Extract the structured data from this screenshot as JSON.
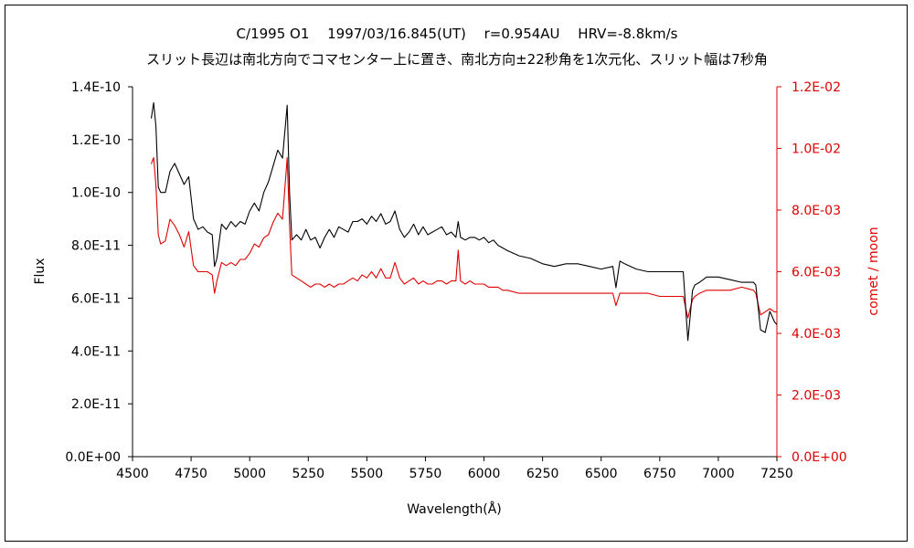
{
  "chart_data": {
    "type": "line",
    "title": "C/1995 O1　 1997/03/16.845(UT)　 r=0.954AU　 HRV=-8.8km/s",
    "subtitle": "スリット長辺は南北方向でコマセンター上に置き、南北方向±22秒角を1次元化、スリット幅は7秒角",
    "xlabel": "Wavelength(Å)",
    "ylabel": "Flux",
    "y2label": "comet / moon",
    "xlim": [
      4500,
      7250
    ],
    "ylim": [
      0,
      1.4e-10
    ],
    "y2lim": [
      0,
      0.012
    ],
    "xticks": [
      4500,
      4750,
      5000,
      5250,
      5500,
      5750,
      6000,
      6250,
      6500,
      6750,
      7000,
      7250
    ],
    "xtick_labels": [
      "4500",
      "4750",
      "5000",
      "5250",
      "5500",
      "5750",
      "6000",
      "6250",
      "6500",
      "6750",
      "7000",
      "7250"
    ],
    "yticks": [
      0,
      2e-11,
      4e-11,
      6e-11,
      8e-11,
      1e-10,
      1.2e-10,
      1.4e-10
    ],
    "ytick_labels": [
      "0.0E+00",
      "2.0E-11",
      "4.0E-11",
      "6.0E-11",
      "8.0E-11",
      "1.0E-10",
      "1.2E-10",
      "1.4E-10"
    ],
    "y2ticks": [
      0,
      0.002,
      0.004,
      0.006,
      0.008,
      0.01,
      0.012
    ],
    "y2tick_labels": [
      "0.0E+00",
      "2.0E-03",
      "4.0E-03",
      "6.0E-03",
      "8.0E-03",
      "1.0E-02",
      "1.2E-02"
    ],
    "grid": false,
    "colors": {
      "flux": "#000000",
      "ratio": "#e00000",
      "axis_right": "#e00000"
    },
    "series": [
      {
        "axis": "left",
        "x": [
          4580,
          4590,
          4600,
          4610,
          4620,
          4640,
          4660,
          4680,
          4700,
          4720,
          4740,
          4760,
          4780,
          4800,
          4820,
          4840,
          4850,
          4860,
          4880,
          4900,
          4920,
          4940,
          4960,
          4980,
          5000,
          5020,
          5040,
          5060,
          5080,
          5100,
          5120,
          5140,
          5160,
          5170,
          5180,
          5200,
          5220,
          5240,
          5260,
          5280,
          5300,
          5320,
          5340,
          5360,
          5380,
          5400,
          5420,
          5440,
          5460,
          5480,
          5500,
          5520,
          5540,
          5560,
          5580,
          5600,
          5620,
          5640,
          5660,
          5680,
          5700,
          5720,
          5740,
          5760,
          5780,
          5800,
          5820,
          5840,
          5860,
          5880,
          5890,
          5900,
          5920,
          5940,
          5960,
          5980,
          6000,
          6020,
          6040,
          6060,
          6080,
          6100,
          6150,
          6200,
          6250,
          6300,
          6350,
          6400,
          6450,
          6500,
          6550,
          6563,
          6580,
          6600,
          6650,
          6700,
          6750,
          6800,
          6850,
          6870,
          6880,
          6890,
          6900,
          6920,
          6950,
          7000,
          7050,
          7100,
          7150,
          7160,
          7180,
          7200,
          7220,
          7240,
          7250
        ],
        "values": [
          1.28e-10,
          1.34e-10,
          1.25e-10,
          1.02e-10,
          1e-10,
          1e-10,
          1.08e-10,
          1.11e-10,
          1.07e-10,
          1.03e-10,
          1.06e-10,
          9e-11,
          8.6e-11,
          8.7e-11,
          8.5e-11,
          8.4e-11,
          7.2e-11,
          7.5e-11,
          8.8e-11,
          8.6e-11,
          8.9e-11,
          8.7e-11,
          8.9e-11,
          8.8e-11,
          9.3e-11,
          9.6e-11,
          9.3e-11,
          1e-10,
          1.04e-10,
          1.1e-10,
          1.16e-10,
          1.13e-10,
          1.33e-10,
          1e-10,
          8.2e-11,
          8.4e-11,
          8.2e-11,
          8.6e-11,
          8.2e-11,
          8.3e-11,
          7.9e-11,
          8.3e-11,
          8.6e-11,
          8.3e-11,
          8.7e-11,
          8.6e-11,
          8.5e-11,
          8.9e-11,
          8.9e-11,
          9e-11,
          8.8e-11,
          9.1e-11,
          8.9e-11,
          9.2e-11,
          8.8e-11,
          8.9e-11,
          9.3e-11,
          8.6e-11,
          8.3e-11,
          8.5e-11,
          8.8e-11,
          8.4e-11,
          8.7e-11,
          8.4e-11,
          8.5e-11,
          8.6e-11,
          8.7e-11,
          8.4e-11,
          8.5e-11,
          8.3e-11,
          8.9e-11,
          8.3e-11,
          8.2e-11,
          8.3e-11,
          8.3e-11,
          8.2e-11,
          8.3e-11,
          8.1e-11,
          8.2e-11,
          8e-11,
          7.9e-11,
          7.8e-11,
          7.6e-11,
          7.5e-11,
          7.3e-11,
          7.2e-11,
          7.3e-11,
          7.3e-11,
          7.2e-11,
          7.1e-11,
          7.2e-11,
          6.4e-11,
          7.4e-11,
          7.3e-11,
          7.1e-11,
          7e-11,
          7e-11,
          7e-11,
          7e-11,
          4.4e-11,
          5.3e-11,
          6.3e-11,
          6.5e-11,
          6.6e-11,
          6.8e-11,
          6.8e-11,
          6.7e-11,
          6.6e-11,
          6.6e-11,
          6.5e-11,
          4.8e-11,
          4.7e-11,
          5.5e-11,
          5.1e-11,
          5e-11
        ]
      },
      {
        "axis": "right",
        "x": [
          4580,
          4590,
          4600,
          4610,
          4620,
          4640,
          4660,
          4680,
          4700,
          4720,
          4740,
          4760,
          4780,
          4800,
          4820,
          4840,
          4850,
          4860,
          4880,
          4900,
          4920,
          4940,
          4960,
          4980,
          5000,
          5020,
          5040,
          5060,
          5080,
          5100,
          5120,
          5140,
          5160,
          5170,
          5180,
          5200,
          5220,
          5240,
          5260,
          5280,
          5300,
          5320,
          5340,
          5360,
          5380,
          5400,
          5420,
          5440,
          5460,
          5480,
          5500,
          5520,
          5540,
          5560,
          5580,
          5600,
          5620,
          5640,
          5660,
          5680,
          5700,
          5720,
          5740,
          5760,
          5780,
          5800,
          5820,
          5840,
          5860,
          5880,
          5890,
          5900,
          5920,
          5940,
          5960,
          5980,
          6000,
          6020,
          6040,
          6060,
          6080,
          6100,
          6150,
          6200,
          6250,
          6300,
          6350,
          6400,
          6450,
          6500,
          6550,
          6563,
          6580,
          6600,
          6650,
          6700,
          6750,
          6800,
          6850,
          6870,
          6880,
          6890,
          6900,
          6920,
          6950,
          7000,
          7050,
          7100,
          7150,
          7160,
          7180,
          7200,
          7220,
          7240,
          7250
        ],
        "values": [
          0.0095,
          0.0097,
          0.0088,
          0.0072,
          0.0069,
          0.007,
          0.0077,
          0.0075,
          0.0072,
          0.0068,
          0.0073,
          0.0062,
          0.006,
          0.006,
          0.006,
          0.0059,
          0.0053,
          0.0057,
          0.0063,
          0.0062,
          0.0063,
          0.0062,
          0.0064,
          0.0064,
          0.0066,
          0.0069,
          0.0068,
          0.0071,
          0.0072,
          0.0076,
          0.0079,
          0.0077,
          0.0097,
          0.0075,
          0.0059,
          0.0058,
          0.0057,
          0.0056,
          0.0055,
          0.0056,
          0.0056,
          0.0055,
          0.0056,
          0.0055,
          0.0056,
          0.0056,
          0.0057,
          0.0058,
          0.0057,
          0.0059,
          0.0058,
          0.006,
          0.0058,
          0.0061,
          0.0058,
          0.0058,
          0.0063,
          0.0058,
          0.0056,
          0.0057,
          0.0058,
          0.0056,
          0.0057,
          0.0056,
          0.0056,
          0.0057,
          0.0057,
          0.0056,
          0.0057,
          0.0057,
          0.0067,
          0.0057,
          0.0056,
          0.0057,
          0.0056,
          0.0056,
          0.0056,
          0.0055,
          0.0055,
          0.0055,
          0.0054,
          0.0054,
          0.0053,
          0.0053,
          0.0053,
          0.0053,
          0.0053,
          0.0053,
          0.0053,
          0.0053,
          0.0053,
          0.0049,
          0.0053,
          0.0053,
          0.0053,
          0.0053,
          0.0052,
          0.0052,
          0.0052,
          0.0045,
          0.0048,
          0.0051,
          0.0052,
          0.0053,
          0.0054,
          0.0054,
          0.0054,
          0.0055,
          0.0054,
          0.0053,
          0.0046,
          0.0047,
          0.0048,
          0.0047,
          0.0047
        ]
      }
    ]
  }
}
